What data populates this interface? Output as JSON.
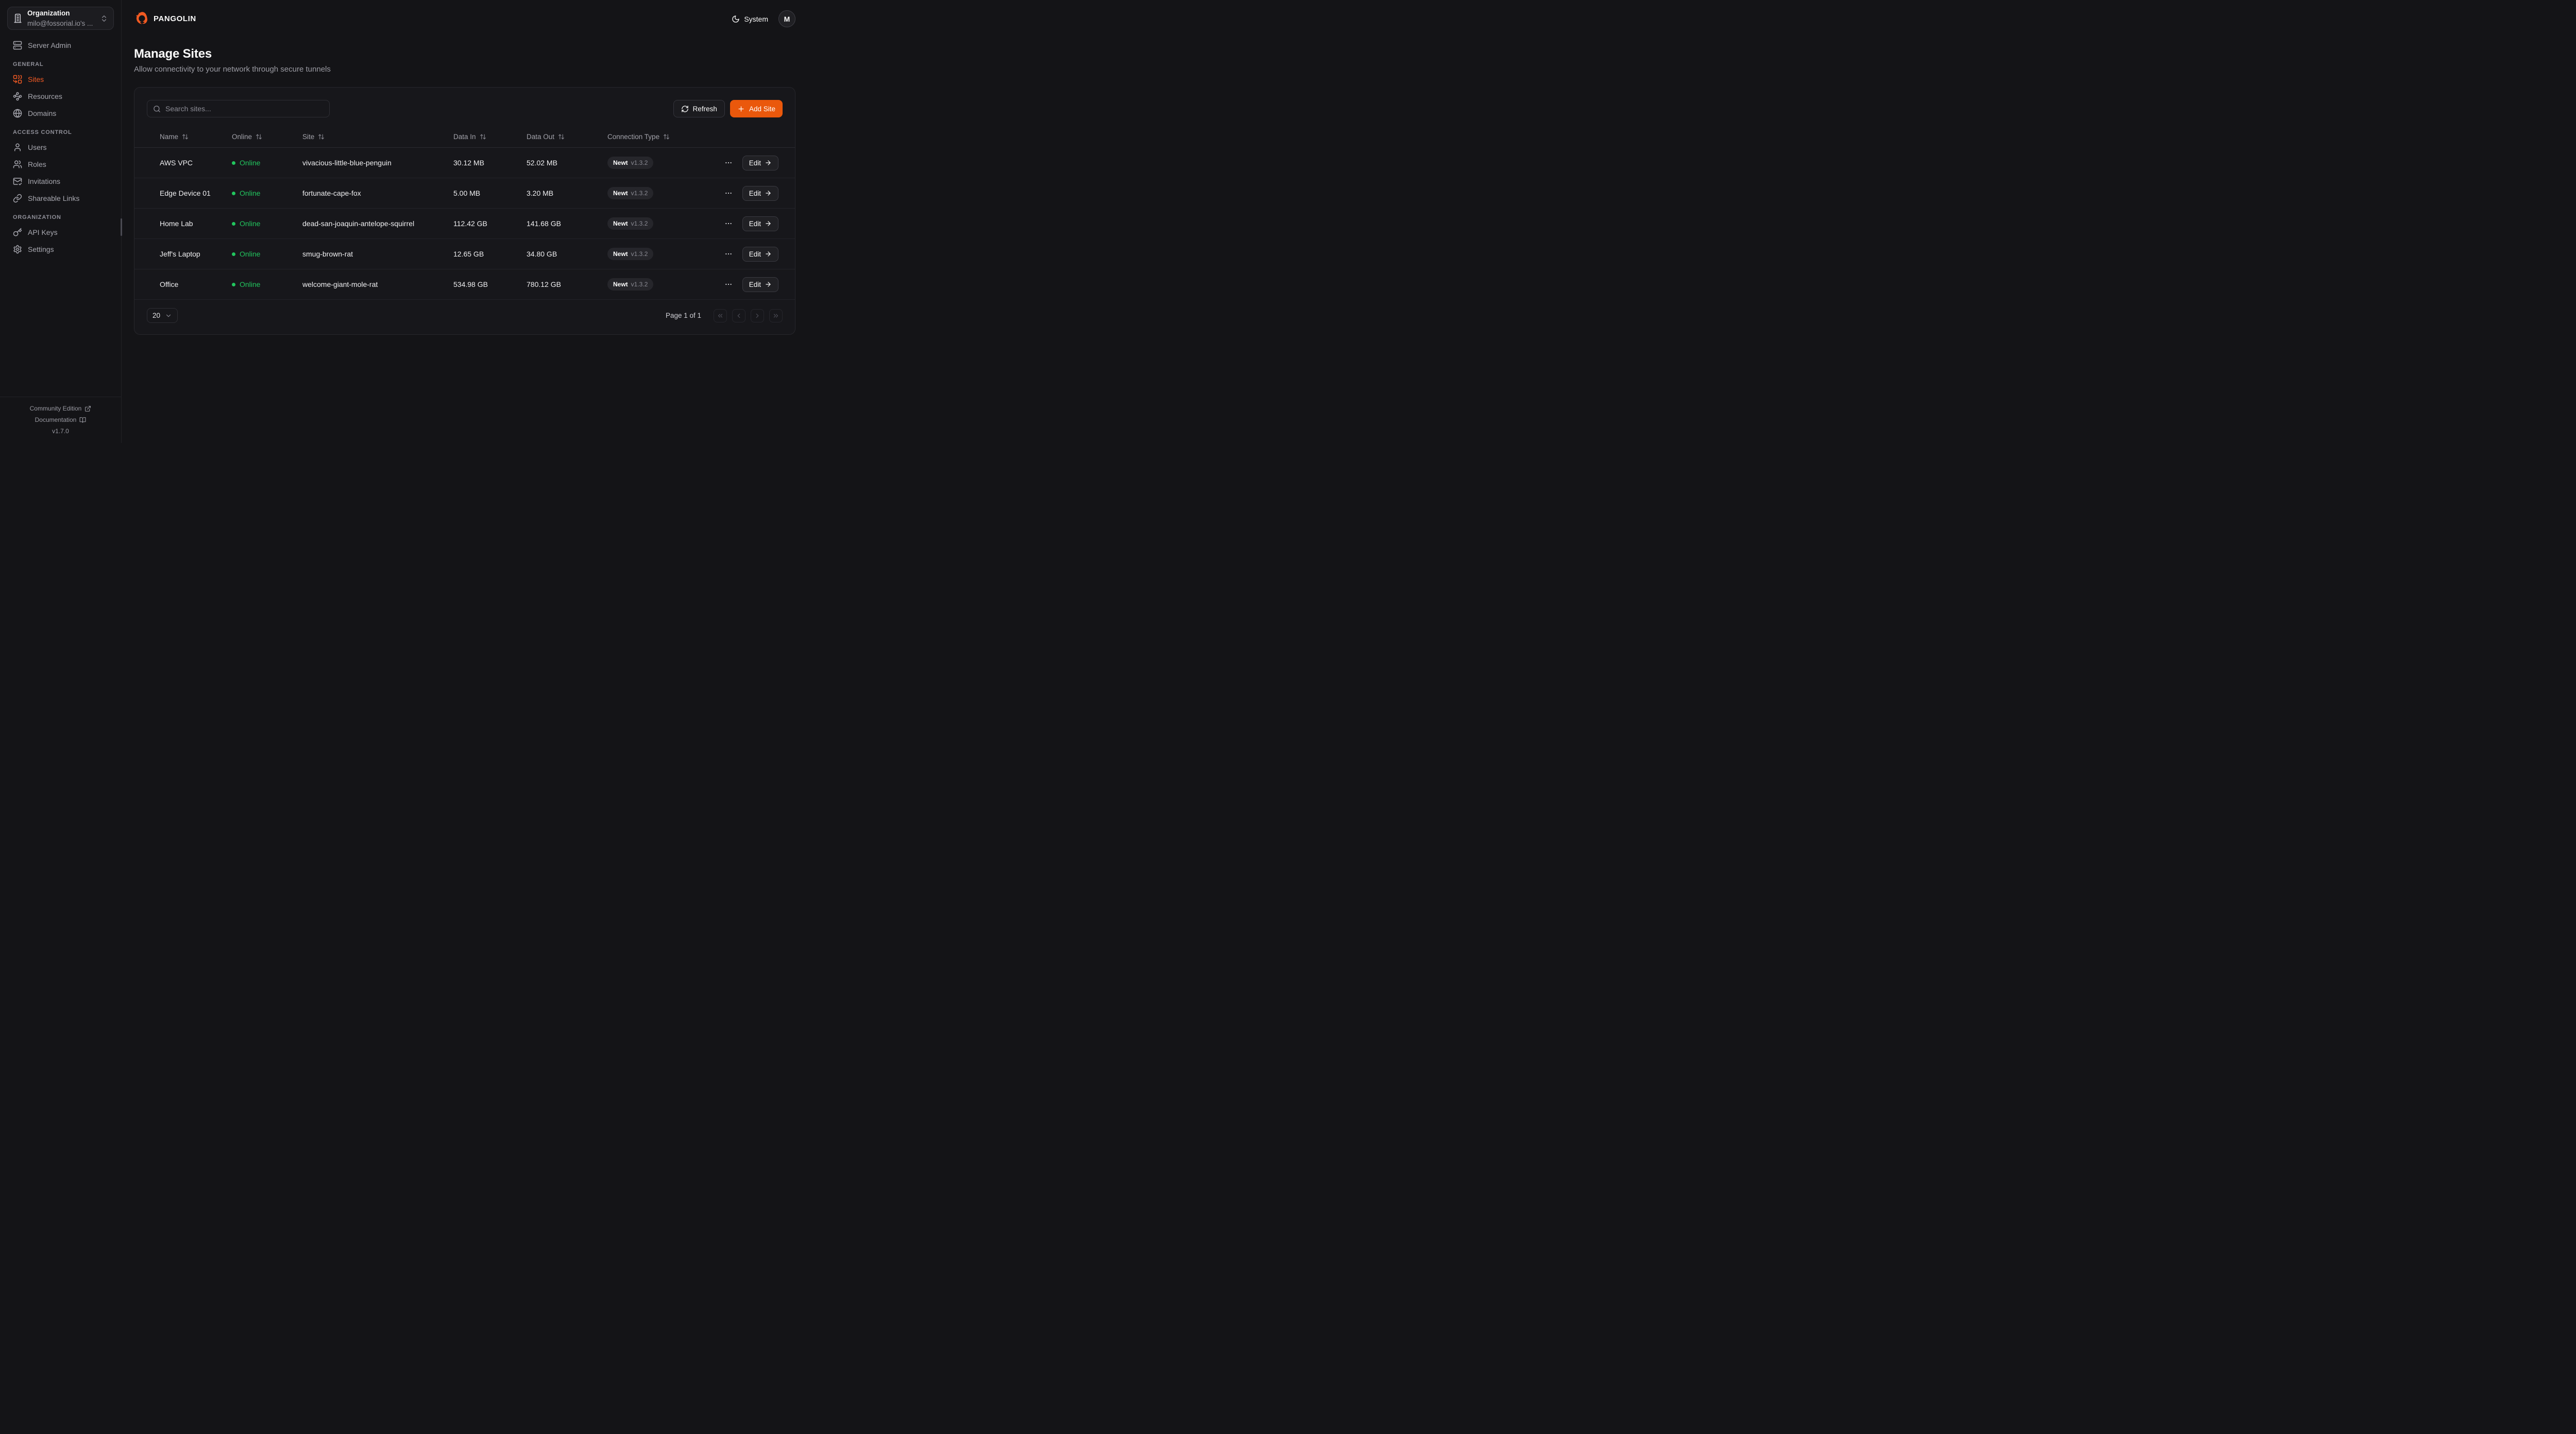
{
  "theme": {
    "accent_orange": "#ea580c",
    "logo_orange": "#f15a22",
    "online_green": "#22c55e",
    "background": "#141417",
    "card_background": "#17171b"
  },
  "sidebar": {
    "org_switcher": {
      "label": "Organization",
      "value": "milo@fossorial.io's ...",
      "icon": "building"
    },
    "top_items": [
      {
        "label": "Server Admin",
        "icon": "server"
      }
    ],
    "sections": [
      {
        "title": "GENERAL",
        "items": [
          {
            "label": "Sites",
            "icon": "sites",
            "active": true
          },
          {
            "label": "Resources",
            "icon": "waypoints",
            "active": false
          },
          {
            "label": "Domains",
            "icon": "globe",
            "active": false
          }
        ]
      },
      {
        "title": "ACCESS CONTROL",
        "items": [
          {
            "label": "Users",
            "icon": "user",
            "active": false
          },
          {
            "label": "Roles",
            "icon": "users",
            "active": false
          },
          {
            "label": "Invitations",
            "icon": "mail-check",
            "active": false
          },
          {
            "label": "Shareable Links",
            "icon": "link",
            "active": false
          }
        ]
      },
      {
        "title": "ORGANIZATION",
        "items": [
          {
            "label": "API Keys",
            "icon": "key",
            "active": false
          },
          {
            "label": "Settings",
            "icon": "settings",
            "active": false
          }
        ]
      }
    ],
    "footer": {
      "links": [
        {
          "label": "Community Edition",
          "icon": "external-link"
        },
        {
          "label": "Documentation",
          "icon": "book-open"
        }
      ],
      "version": "v1.7.0"
    }
  },
  "header": {
    "brand": "PANGOLIN",
    "theme_toggle": {
      "label": "System",
      "icon": "moon"
    },
    "avatar": "M"
  },
  "page": {
    "title": "Manage Sites",
    "subtitle": "Allow connectivity to your network through secure tunnels"
  },
  "toolbar": {
    "search_placeholder": "Search sites...",
    "refresh_label": "Refresh",
    "add_site_label": "Add Site"
  },
  "table": {
    "columns": [
      "Name",
      "Online",
      "Site",
      "Data In",
      "Data Out",
      "Connection Type"
    ],
    "row_actions": {
      "edit_label": "Edit"
    },
    "rows": [
      {
        "name": "AWS VPC",
        "status": "Online",
        "site": "vivacious-little-blue-penguin",
        "data_in": "30.12 MB",
        "data_out": "52.02 MB",
        "connection_type": "Newt",
        "connection_version": "v1.3.2"
      },
      {
        "name": "Edge Device 01",
        "status": "Online",
        "site": "fortunate-cape-fox",
        "data_in": "5.00 MB",
        "data_out": "3.20 MB",
        "connection_type": "Newt",
        "connection_version": "v1.3.2"
      },
      {
        "name": "Home Lab",
        "status": "Online",
        "site": "dead-san-joaquin-antelope-squirrel",
        "data_in": "112.42 GB",
        "data_out": "141.68 GB",
        "connection_type": "Newt",
        "connection_version": "v1.3.2"
      },
      {
        "name": "Jeff's Laptop",
        "status": "Online",
        "site": "smug-brown-rat",
        "data_in": "12.65 GB",
        "data_out": "34.80 GB",
        "connection_type": "Newt",
        "connection_version": "v1.3.2"
      },
      {
        "name": "Office",
        "status": "Online",
        "site": "welcome-giant-mole-rat",
        "data_in": "534.98 GB",
        "data_out": "780.12 GB",
        "connection_type": "Newt",
        "connection_version": "v1.3.2"
      }
    ]
  },
  "pagination": {
    "page_size": "20",
    "status": "Page 1 of 1"
  }
}
